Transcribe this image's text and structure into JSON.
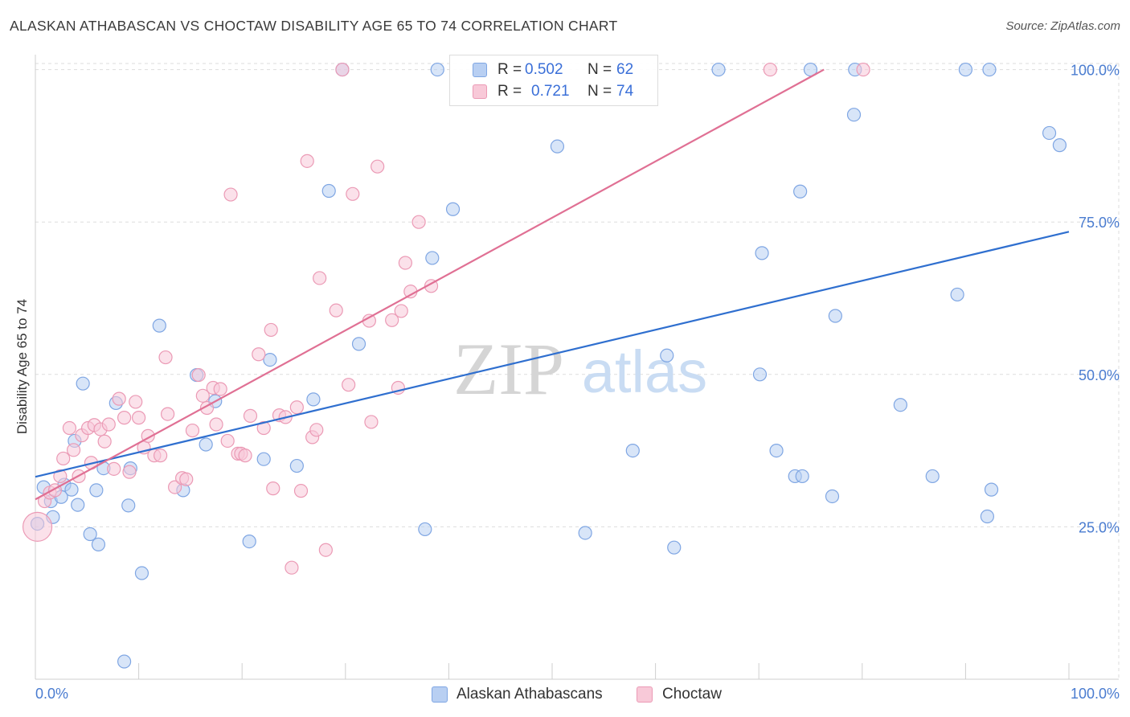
{
  "title": "ALASKAN ATHABASCAN VS CHOCTAW DISABILITY AGE 65 TO 74 CORRELATION CHART",
  "source": "Source: ZipAtlas.com",
  "watermark": {
    "zip": "ZIP",
    "atlas": "atlas"
  },
  "legend": {
    "r_label": "R =",
    "n_label": "N =",
    "rows": [
      {
        "r": "0.502",
        "n": "62"
      },
      {
        "r": "0.721",
        "n": "74"
      }
    ]
  },
  "bottom_legend": [
    "Alaskan Athabascans",
    "Choctaw"
  ],
  "colors": {
    "blue_fill": "#b8cff2",
    "blue_stroke": "#7fa6e3",
    "blue_line": "#2f6fcf",
    "pink_fill": "#f8c9d8",
    "pink_stroke": "#eb9ab5",
    "pink_line": "#e07094",
    "tick_label": "#4a7cd0",
    "grid": "#dddddd"
  },
  "chart_data": {
    "type": "scatter",
    "title": "ALASKAN ATHABASCAN VS CHOCTAW DISABILITY AGE 65 TO 74 CORRELATION CHART",
    "xlabel": "",
    "ylabel": "Disability Age 65 to 74",
    "xlim": [
      0,
      100
    ],
    "ylim": [
      0,
      101
    ],
    "x_tick_labels": [
      "0.0%",
      "100.0%"
    ],
    "y_ticks": [
      25,
      50,
      75,
      100
    ],
    "y_tick_labels": [
      "25.0%",
      "50.0%",
      "75.0%",
      "100.0%"
    ],
    "series": [
      {
        "name": "Alaskan Athabascans",
        "r": 0.502,
        "n": 62,
        "trend": {
          "x": [
            0,
            100
          ],
          "y": [
            33.2,
            73.4
          ]
        },
        "points": [
          [
            0.2,
            25.5
          ],
          [
            0.8,
            31.5
          ],
          [
            1.5,
            29.2
          ],
          [
            1.7,
            26.6
          ],
          [
            2.5,
            29.9
          ],
          [
            2.8,
            31.9
          ],
          [
            3.5,
            31.1
          ],
          [
            3.8,
            39.1
          ],
          [
            4.1,
            28.6
          ],
          [
            4.6,
            48.5
          ],
          [
            5.3,
            23.8
          ],
          [
            5.9,
            31.0
          ],
          [
            6.1,
            22.1
          ],
          [
            6.6,
            34.6
          ],
          [
            7.8,
            45.3
          ],
          [
            8.6,
            2.9
          ],
          [
            9.0,
            28.5
          ],
          [
            9.2,
            34.6
          ],
          [
            10.3,
            17.4
          ],
          [
            12.0,
            58.0
          ],
          [
            14.3,
            31.0
          ],
          [
            15.6,
            49.9
          ],
          [
            16.5,
            38.5
          ],
          [
            17.4,
            45.6
          ],
          [
            20.7,
            22.6
          ],
          [
            22.1,
            36.1
          ],
          [
            22.7,
            52.4
          ],
          [
            25.3,
            35.0
          ],
          [
            26.9,
            45.9
          ],
          [
            28.4,
            80.1
          ],
          [
            29.7,
            100.0
          ],
          [
            31.3,
            55.0
          ],
          [
            37.7,
            24.6
          ],
          [
            38.4,
            69.1
          ],
          [
            38.9,
            100.0
          ],
          [
            40.4,
            77.1
          ],
          [
            50.5,
            87.4
          ],
          [
            53.2,
            24.0
          ],
          [
            57.8,
            37.5
          ],
          [
            61.1,
            53.1
          ],
          [
            61.8,
            21.6
          ],
          [
            66.1,
            100.0
          ],
          [
            70.1,
            50.0
          ],
          [
            70.3,
            69.9
          ],
          [
            71.7,
            37.5
          ],
          [
            73.5,
            33.3
          ],
          [
            74.0,
            80.0
          ],
          [
            74.2,
            33.3
          ],
          [
            75.0,
            100.0
          ],
          [
            77.1,
            30.0
          ],
          [
            77.4,
            59.6
          ],
          [
            79.2,
            92.6
          ],
          [
            79.3,
            100.0
          ],
          [
            83.7,
            45.0
          ],
          [
            86.8,
            33.3
          ],
          [
            89.2,
            63.1
          ],
          [
            90.0,
            100.0
          ],
          [
            92.1,
            26.7
          ],
          [
            92.5,
            31.1
          ],
          [
            92.3,
            100.0
          ],
          [
            98.1,
            89.6
          ],
          [
            99.1,
            87.6
          ]
        ]
      },
      {
        "name": "Choctaw",
        "r": 0.721,
        "n": 74,
        "trend": {
          "x": [
            0,
            76.3
          ],
          "y": [
            29.5,
            100.0
          ]
        },
        "points": [
          [
            0.2,
            25.0
          ],
          [
            0.9,
            29.2
          ],
          [
            1.4,
            30.6
          ],
          [
            1.9,
            31.0
          ],
          [
            2.4,
            33.3
          ],
          [
            2.7,
            36.2
          ],
          [
            3.3,
            41.2
          ],
          [
            3.7,
            37.6
          ],
          [
            4.2,
            33.3
          ],
          [
            4.5,
            40.0
          ],
          [
            5.1,
            41.2
          ],
          [
            5.4,
            35.5
          ],
          [
            5.7,
            41.7
          ],
          [
            6.3,
            41.0
          ],
          [
            6.7,
            39.0
          ],
          [
            7.1,
            41.8
          ],
          [
            7.6,
            34.5
          ],
          [
            8.1,
            46.0
          ],
          [
            8.6,
            42.9
          ],
          [
            9.1,
            34.0
          ],
          [
            9.7,
            45.5
          ],
          [
            10.0,
            42.9
          ],
          [
            10.5,
            38.0
          ],
          [
            10.9,
            39.9
          ],
          [
            11.5,
            36.7
          ],
          [
            12.1,
            36.7
          ],
          [
            12.6,
            52.8
          ],
          [
            12.8,
            43.5
          ],
          [
            13.5,
            31.5
          ],
          [
            14.2,
            33.0
          ],
          [
            14.6,
            32.8
          ],
          [
            15.2,
            40.8
          ],
          [
            15.8,
            49.9
          ],
          [
            16.2,
            46.5
          ],
          [
            16.6,
            44.5
          ],
          [
            17.2,
            47.8
          ],
          [
            17.5,
            41.8
          ],
          [
            17.9,
            47.6
          ],
          [
            18.6,
            39.1
          ],
          [
            18.9,
            79.5
          ],
          [
            19.6,
            37.0
          ],
          [
            19.9,
            37.0
          ],
          [
            20.3,
            36.7
          ],
          [
            20.8,
            43.2
          ],
          [
            21.6,
            53.3
          ],
          [
            22.1,
            41.2
          ],
          [
            22.8,
            57.3
          ],
          [
            23.0,
            31.3
          ],
          [
            23.6,
            43.3
          ],
          [
            24.2,
            43.0
          ],
          [
            24.8,
            18.3
          ],
          [
            25.3,
            44.6
          ],
          [
            25.7,
            30.9
          ],
          [
            26.3,
            85.0
          ],
          [
            26.8,
            39.7
          ],
          [
            27.2,
            40.9
          ],
          [
            27.5,
            65.8
          ],
          [
            28.1,
            21.2
          ],
          [
            29.1,
            60.5
          ],
          [
            29.7,
            100.0
          ],
          [
            30.3,
            48.3
          ],
          [
            30.7,
            79.6
          ],
          [
            32.3,
            58.8
          ],
          [
            32.5,
            42.2
          ],
          [
            33.1,
            84.1
          ],
          [
            34.5,
            58.9
          ],
          [
            35.1,
            47.8
          ],
          [
            35.4,
            60.4
          ],
          [
            35.8,
            68.3
          ],
          [
            36.3,
            63.6
          ],
          [
            37.1,
            75.0
          ],
          [
            38.3,
            64.5
          ],
          [
            71.1,
            100.0
          ],
          [
            80.1,
            100.0
          ]
        ]
      }
    ]
  }
}
